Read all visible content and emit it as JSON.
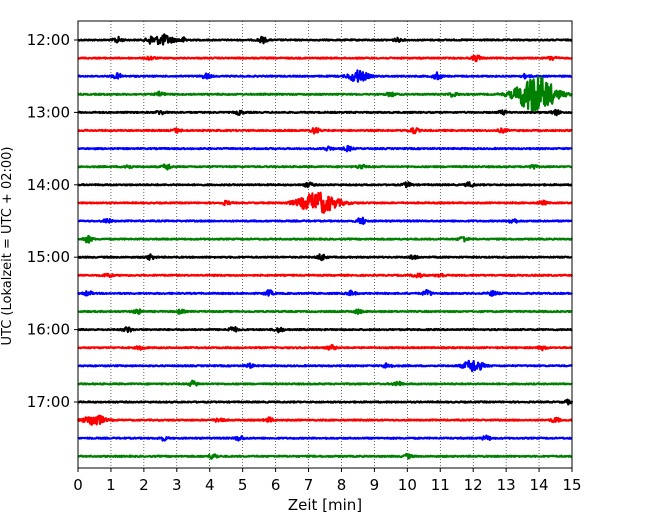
{
  "chart_data": {
    "type": "line",
    "subtype": "helicorder",
    "xlabel": "Zeit  [min]",
    "ylabel": "UTC (Lokalzeit = UTC + 02:00)",
    "xlim": [
      0,
      15
    ],
    "x_ticks": [
      "0",
      "1",
      "2",
      "3",
      "4",
      "5",
      "6",
      "7",
      "8",
      "9",
      "10",
      "11",
      "12",
      "13",
      "14",
      "15"
    ],
    "y_tick_labels": [
      "12:00",
      "13:00",
      "14:00",
      "15:00",
      "16:00",
      "17:00"
    ],
    "grid": "vertical dotted",
    "trace_interval_min": 15,
    "trace_colors": [
      "#000000",
      "#ff0000",
      "#0000ff",
      "#008000"
    ],
    "traces": [
      {
        "start": "12:00",
        "color": "#000000",
        "events": [
          [
            1.2,
            0.45
          ],
          [
            2.2,
            0.5
          ],
          [
            2.6,
            0.8
          ],
          [
            3.2,
            0.35
          ],
          [
            5.6,
            0.45
          ],
          [
            9.7,
            0.25
          ]
        ]
      },
      {
        "start": "12:15",
        "color": "#ff0000",
        "events": [
          [
            2.2,
            0.25
          ],
          [
            12.1,
            0.45
          ],
          [
            14.4,
            0.3
          ]
        ]
      },
      {
        "start": "12:30",
        "color": "#0000ff",
        "events": [
          [
            1.2,
            0.4
          ],
          [
            3.9,
            0.4
          ],
          [
            8.5,
            0.9
          ],
          [
            10.9,
            0.55
          ],
          [
            13.6,
            0.3
          ]
        ]
      },
      {
        "start": "12:45",
        "color": "#008000",
        "events": [
          [
            2.5,
            0.35
          ],
          [
            9.5,
            0.3
          ],
          [
            11.4,
            0.35
          ],
          [
            13.9,
            3.0
          ]
        ]
      },
      {
        "start": "13:00",
        "color": "#000000",
        "events": [
          [
            2.5,
            0.3
          ],
          [
            4.9,
            0.3
          ],
          [
            12.9,
            0.3
          ],
          [
            14.5,
            0.4
          ]
        ]
      },
      {
        "start": "13:15",
        "color": "#ff0000",
        "events": [
          [
            3.0,
            0.3
          ],
          [
            7.2,
            0.45
          ],
          [
            10.2,
            0.45
          ],
          [
            12.9,
            0.3
          ]
        ]
      },
      {
        "start": "13:30",
        "color": "#0000ff",
        "events": [
          [
            7.6,
            0.3
          ],
          [
            8.2,
            0.35
          ]
        ]
      },
      {
        "start": "13:45",
        "color": "#008000",
        "events": [
          [
            1.5,
            0.3
          ],
          [
            2.7,
            0.45
          ],
          [
            8.6,
            0.3
          ],
          [
            13.8,
            0.3
          ]
        ]
      },
      {
        "start": "14:00",
        "color": "#000000",
        "events": [
          [
            7.0,
            0.35
          ],
          [
            10.0,
            0.35
          ],
          [
            11.9,
            0.35
          ]
        ]
      },
      {
        "start": "14:15",
        "color": "#ff0000",
        "events": [
          [
            4.5,
            0.3
          ],
          [
            7.3,
            1.6
          ],
          [
            14.1,
            0.3
          ]
        ]
      },
      {
        "start": "14:30",
        "color": "#0000ff",
        "events": [
          [
            0.9,
            0.3
          ],
          [
            8.6,
            0.55
          ],
          [
            13.2,
            0.4
          ]
        ]
      },
      {
        "start": "14:45",
        "color": "#008000",
        "events": [
          [
            0.3,
            0.5
          ],
          [
            11.7,
            0.45
          ]
        ]
      },
      {
        "start": "15:00",
        "color": "#000000",
        "events": [
          [
            2.2,
            0.35
          ],
          [
            7.4,
            0.5
          ],
          [
            10.2,
            0.3
          ]
        ]
      },
      {
        "start": "15:15",
        "color": "#ff0000",
        "events": [
          [
            0.9,
            0.3
          ],
          [
            10.3,
            0.35
          ],
          [
            11.0,
            0.3
          ]
        ]
      },
      {
        "start": "15:30",
        "color": "#0000ff",
        "events": [
          [
            0.3,
            0.35
          ],
          [
            5.8,
            0.45
          ],
          [
            8.3,
            0.35
          ],
          [
            10.6,
            0.45
          ],
          [
            12.6,
            0.35
          ]
        ]
      },
      {
        "start": "15:45",
        "color": "#008000",
        "events": [
          [
            1.8,
            0.35
          ],
          [
            3.1,
            0.3
          ],
          [
            8.5,
            0.3
          ]
        ]
      },
      {
        "start": "16:00",
        "color": "#000000",
        "events": [
          [
            1.5,
            0.4
          ],
          [
            4.7,
            0.45
          ],
          [
            6.1,
            0.4
          ]
        ]
      },
      {
        "start": "16:15",
        "color": "#ff0000",
        "events": [
          [
            1.9,
            0.3
          ],
          [
            7.7,
            0.35
          ],
          [
            14.1,
            0.3
          ]
        ]
      },
      {
        "start": "16:30",
        "color": "#0000ff",
        "events": [
          [
            5.2,
            0.3
          ],
          [
            9.4,
            0.45
          ],
          [
            12.0,
            0.9
          ]
        ]
      },
      {
        "start": "16:45",
        "color": "#008000",
        "events": [
          [
            3.5,
            0.45
          ],
          [
            9.7,
            0.35
          ]
        ]
      },
      {
        "start": "17:00",
        "color": "#000000",
        "events": [
          [
            14.9,
            0.3
          ]
        ]
      },
      {
        "start": "17:15",
        "color": "#ff0000",
        "events": [
          [
            0.5,
            0.9
          ],
          [
            4.3,
            0.4
          ],
          [
            5.8,
            0.35
          ],
          [
            14.5,
            0.35
          ]
        ]
      },
      {
        "start": "17:30",
        "color": "#0000ff",
        "events": [
          [
            2.6,
            0.3
          ],
          [
            4.9,
            0.35
          ],
          [
            12.4,
            0.35
          ]
        ]
      },
      {
        "start": "17:45",
        "color": "#008000",
        "events": [
          [
            4.1,
            0.4
          ],
          [
            10.0,
            0.3
          ]
        ]
      }
    ]
  }
}
